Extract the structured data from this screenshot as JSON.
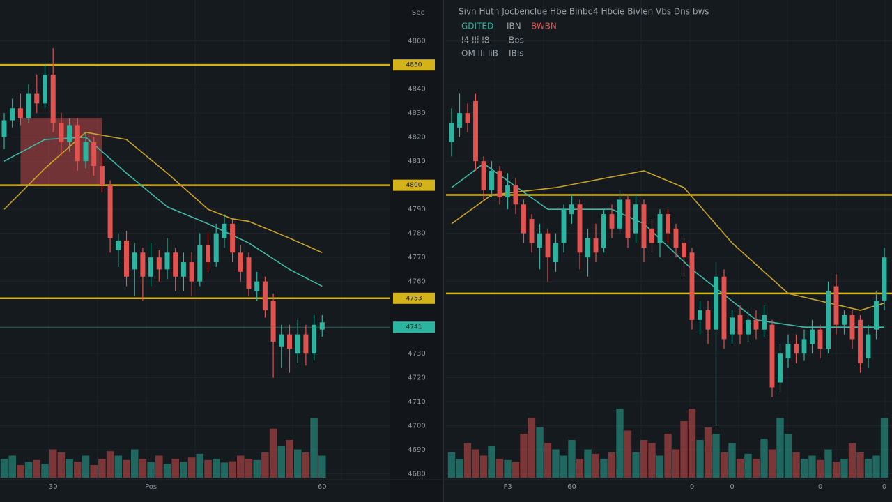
{
  "chart_data": [
    {
      "type": "candlestick",
      "axis_label": "Sbc",
      "ylim": [
        4677,
        4877
      ],
      "yticks": [
        4860,
        4840,
        4830,
        4820,
        4810,
        4790,
        4780,
        4770,
        4760,
        4730,
        4720,
        4710,
        4700,
        4690,
        4680
      ],
      "grid": true,
      "up_color": "#2bb5a0",
      "down_color": "#e2524f",
      "levels": [
        {
          "value": 4850,
          "color": "#d4b21a"
        },
        {
          "value": 4800,
          "color": "#d4b21a"
        },
        {
          "value": 4753,
          "color": "#d4b21a"
        },
        {
          "value": 4741,
          "color": "#2bb5a0"
        }
      ],
      "zone": {
        "x": [
          2,
          12
        ],
        "y": [
          4800,
          4828
        ],
        "color": "#e2524f"
      },
      "xticks": [
        {
          "value": 6,
          "label": "30"
        },
        {
          "value": 18,
          "label": "Pos"
        },
        {
          "value": 39,
          "label": "60"
        }
      ],
      "open": [
        4820,
        4827,
        4832,
        4828,
        4838,
        4834,
        4846,
        4826,
        4818,
        4825,
        4810,
        4818,
        4808,
        4800,
        4773,
        4777,
        4765,
        4772,
        4762,
        4770,
        4765,
        4772,
        4762,
        4768,
        4760,
        4775,
        4768,
        4778,
        4784,
        4772,
        4770,
        4756,
        4760,
        4752,
        4733,
        4738,
        4730,
        4738,
        4730,
        4740
      ],
      "high": [
        4830,
        4836,
        4838,
        4842,
        4846,
        4850,
        4857,
        4830,
        4828,
        4828,
        4822,
        4820,
        4812,
        4802,
        4780,
        4781,
        4776,
        4774,
        4776,
        4773,
        4778,
        4774,
        4772,
        4772,
        4780,
        4780,
        4784,
        4788,
        4786,
        4775,
        4772,
        4764,
        4762,
        4755,
        4742,
        4742,
        4744,
        4742,
        4746,
        4746
      ],
      "low": [
        4815,
        4824,
        4825,
        4826,
        4830,
        4832,
        4822,
        4812,
        4814,
        4806,
        4807,
        4804,
        4797,
        4772,
        4766,
        4758,
        4754,
        4752,
        4758,
        4760,
        4761,
        4756,
        4756,
        4754,
        4758,
        4764,
        4766,
        4774,
        4768,
        4760,
        4754,
        4752,
        4745,
        4720,
        4724,
        4722,
        4726,
        4725,
        4727,
        4737
      ],
      "close": [
        4827,
        4832,
        4828,
        4838,
        4834,
        4846,
        4826,
        4818,
        4825,
        4810,
        4818,
        4808,
        4800,
        4778,
        4777,
        4762,
        4772,
        4762,
        4770,
        4765,
        4772,
        4762,
        4768,
        4760,
        4775,
        4768,
        4780,
        4784,
        4772,
        4764,
        4757,
        4760,
        4748,
        4735,
        4738,
        4732,
        4738,
        4730,
        4742,
        4743
      ],
      "volume": [
        30,
        35,
        20,
        25,
        28,
        22,
        45,
        40,
        30,
        25,
        35,
        20,
        30,
        42,
        35,
        28,
        45,
        30,
        25,
        35,
        22,
        30,
        25,
        32,
        38,
        28,
        30,
        24,
        26,
        35,
        30,
        28,
        40,
        78,
        50,
        60,
        45,
        40,
        95,
        35
      ],
      "vlim": [
        0,
        100
      ],
      "ma": [
        {
          "color": "#3fb8a8",
          "x": [
            0,
            5,
            10,
            15,
            20,
            25,
            30,
            35,
            39
          ],
          "values": [
            4810,
            4819,
            4820,
            4805,
            4791,
            4784,
            4776,
            4765,
            4758
          ]
        },
        {
          "color": "#c9a227",
          "x": [
            0,
            5,
            10,
            15,
            20,
            25,
            28,
            30,
            35,
            39
          ],
          "values": [
            4790,
            4807,
            4822,
            4819,
            4805,
            4790,
            4786,
            4785,
            4778,
            4772
          ]
        }
      ]
    },
    {
      "type": "candlestick",
      "title": "Sivn Hutn Jocbenclue Hbe Binbo4 Hbcie Bivlen Vbs Dns bws",
      "legend": [
        [
          "GDITED",
          "IBN",
          "BWBN"
        ],
        [
          "I4 IIi I8",
          "Bos"
        ],
        [
          "OM IIi IiB",
          "IBIs"
        ]
      ],
      "ylim": [
        4677,
        4877
      ],
      "grid": true,
      "up_color": "#2bb5a0",
      "down_color": "#e2524f",
      "levels": [
        {
          "value": 4796,
          "color": "#d4b21a"
        },
        {
          "value": 4755,
          "color": "#d4b21a"
        }
      ],
      "xticks": [
        {
          "value": 7,
          "label": "F3"
        },
        {
          "value": 15,
          "label": "60"
        },
        {
          "value": 30,
          "label": "0"
        },
        {
          "value": 35,
          "label": "0"
        },
        {
          "value": 46,
          "label": "0"
        },
        {
          "value": 54,
          "label": "0"
        }
      ],
      "open": [
        4818,
        4824,
        4830,
        4835,
        4810,
        4798,
        4806,
        4795,
        4800,
        4792,
        4786,
        4774,
        4780,
        4768,
        4776,
        4788,
        4792,
        4770,
        4778,
        4774,
        4788,
        4782,
        4794,
        4780,
        4792,
        4782,
        4776,
        4788,
        4782,
        4776,
        4772,
        4744,
        4748,
        4740,
        4762,
        4738,
        4746,
        4738,
        4744,
        4740,
        4742,
        4718,
        4728,
        4734,
        4730,
        4734,
        4740,
        4732,
        4758,
        4742,
        4746,
        4744,
        4728,
        4740,
        4752
      ],
      "high": [
        4832,
        4838,
        4834,
        4838,
        4812,
        4810,
        4808,
        4805,
        4803,
        4794,
        4788,
        4784,
        4782,
        4780,
        4792,
        4796,
        4794,
        4782,
        4784,
        4790,
        4792,
        4798,
        4796,
        4796,
        4794,
        4786,
        4790,
        4790,
        4784,
        4778,
        4774,
        4752,
        4752,
        4768,
        4765,
        4748,
        4750,
        4748,
        4748,
        4750,
        4744,
        4734,
        4738,
        4738,
        4740,
        4744,
        4742,
        4760,
        4763,
        4748,
        4748,
        4746,
        4742,
        4756,
        4774
      ],
      "low": [
        4812,
        4820,
        4822,
        4806,
        4794,
        4795,
        4792,
        4790,
        4788,
        4776,
        4772,
        4765,
        4760,
        4764,
        4772,
        4784,
        4765,
        4762,
        4768,
        4772,
        4778,
        4780,
        4774,
        4776,
        4768,
        4772,
        4770,
        4776,
        4770,
        4762,
        4740,
        4738,
        4734,
        4700,
        4732,
        4734,
        4734,
        4735,
        4736,
        4737,
        4712,
        4714,
        4724,
        4726,
        4727,
        4730,
        4728,
        4730,
        4738,
        4738,
        4732,
        4722,
        4724,
        4736,
        4748
      ],
      "close": [
        4826,
        4830,
        4826,
        4810,
        4798,
        4806,
        4795,
        4800,
        4792,
        4780,
        4776,
        4780,
        4770,
        4776,
        4790,
        4792,
        4772,
        4778,
        4772,
        4788,
        4782,
        4794,
        4778,
        4792,
        4774,
        4776,
        4788,
        4780,
        4774,
        4770,
        4744,
        4748,
        4740,
        4762,
        4736,
        4745,
        4738,
        4744,
        4740,
        4746,
        4716,
        4730,
        4734,
        4730,
        4736,
        4740,
        4732,
        4756,
        4742,
        4746,
        4736,
        4726,
        4738,
        4752,
        4770
      ],
      "volume": [
        40,
        30,
        55,
        45,
        35,
        50,
        30,
        28,
        25,
        70,
        95,
        80,
        55,
        45,
        35,
        60,
        30,
        45,
        38,
        30,
        40,
        110,
        75,
        40,
        60,
        55,
        35,
        70,
        45,
        90,
        110,
        60,
        80,
        70,
        40,
        55,
        30,
        38,
        30,
        62,
        45,
        95,
        70,
        40,
        30,
        35,
        28,
        45,
        25,
        30,
        55,
        40,
        30,
        35,
        95
      ],
      "vlim": [
        0,
        100
      ],
      "ma": [
        {
          "color": "#3fb8a8",
          "x": [
            0,
            4,
            12,
            20,
            24,
            30,
            38,
            44,
            54
          ],
          "values": [
            4799,
            4809,
            4790,
            4790,
            4784,
            4765,
            4744,
            4741,
            4741
          ]
        },
        {
          "color": "#c9a227",
          "x": [
            0,
            5,
            13,
            24,
            29,
            35,
            42,
            51,
            54
          ],
          "values": [
            4784,
            4796,
            4799,
            4806,
            4799,
            4776,
            4755,
            4748,
            4751
          ]
        }
      ]
    }
  ]
}
